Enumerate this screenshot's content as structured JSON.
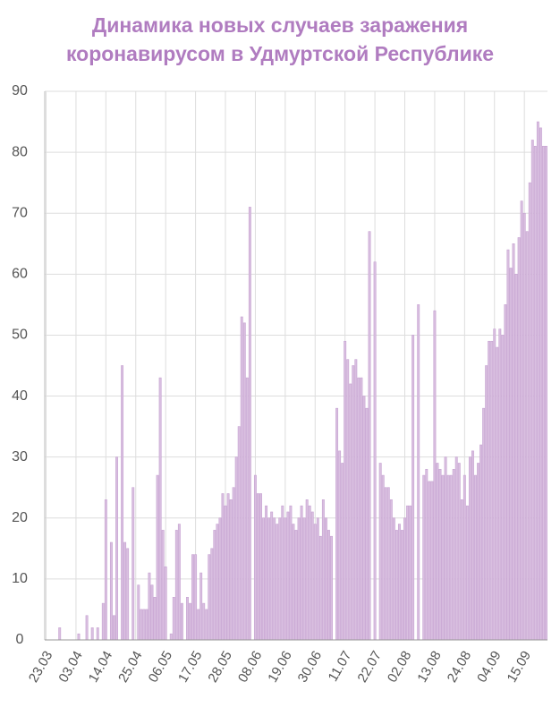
{
  "chart_data": {
    "type": "bar",
    "title": [
      "Динамика новых случаев заражения",
      "коронавирусом в Удмуртской Республике"
    ],
    "categories": [
      "23.03",
      null,
      null,
      null,
      null,
      null,
      null,
      null,
      null,
      null,
      null,
      "03.04",
      null,
      null,
      null,
      null,
      null,
      null,
      null,
      null,
      null,
      null,
      "14.04",
      null,
      null,
      null,
      null,
      null,
      null,
      null,
      null,
      null,
      null,
      "25.04",
      null,
      null,
      null,
      null,
      null,
      null,
      null,
      null,
      null,
      null,
      "06.05",
      null,
      null,
      null,
      null,
      null,
      null,
      null,
      null,
      null,
      null,
      "17.05",
      null,
      null,
      null,
      null,
      null,
      null,
      null,
      null,
      null,
      null,
      "28.05",
      null,
      null,
      null,
      null,
      null,
      null,
      null,
      null,
      null,
      null,
      "08.06",
      null,
      null,
      null,
      null,
      null,
      null,
      null,
      null,
      null,
      null,
      "19.06",
      null,
      null,
      null,
      null,
      null,
      null,
      null,
      null,
      null,
      null,
      "30.06",
      null,
      null,
      null,
      null,
      null,
      null,
      null,
      null,
      null,
      null,
      "11.07",
      null,
      null,
      null,
      null,
      null,
      null,
      null,
      null,
      null,
      null,
      "22.07",
      null,
      null,
      null,
      null,
      null,
      null,
      null,
      null,
      null,
      null,
      "02.08",
      null,
      null,
      null,
      null,
      null,
      null,
      null,
      null,
      null,
      null,
      "13.08",
      null,
      null,
      null,
      null,
      null,
      null,
      null,
      null,
      null,
      null,
      "24.08",
      null,
      null,
      null,
      null,
      null,
      null,
      null,
      null,
      null,
      null,
      "04.09",
      null,
      null,
      null,
      null,
      null,
      null,
      null,
      null,
      null,
      null,
      "15.09",
      null,
      null,
      null,
      null,
      null,
      null,
      null,
      null
    ],
    "values": [
      0,
      0,
      0,
      0,
      0,
      2,
      0,
      0,
      0,
      0,
      0,
      0,
      1,
      0,
      0,
      4,
      0,
      2,
      0,
      2,
      0,
      6,
      23,
      0,
      16,
      4,
      30,
      0,
      45,
      16,
      15,
      0,
      25,
      0,
      9,
      5,
      5,
      5,
      11,
      9,
      7,
      27,
      43,
      18,
      12,
      0,
      1,
      7,
      18,
      19,
      6,
      0,
      7,
      6,
      14,
      14,
      5,
      11,
      6,
      5,
      14,
      15,
      18,
      19,
      20,
      24,
      22,
      24,
      23,
      25,
      30,
      35,
      53,
      52,
      43,
      71,
      0,
      27,
      24,
      24,
      20,
      22,
      20,
      21,
      20,
      19,
      20,
      22,
      20,
      21,
      22,
      19,
      18,
      20,
      22,
      20,
      23,
      22,
      21,
      19,
      20,
      17,
      23,
      20,
      18,
      17,
      0,
      38,
      31,
      29,
      49,
      46,
      42,
      45,
      46,
      43,
      43,
      40,
      38,
      67,
      0,
      62,
      0,
      29,
      27,
      25,
      25,
      23,
      20,
      18,
      19,
      18,
      20,
      22,
      22,
      50,
      0,
      55,
      0,
      27,
      28,
      26,
      26,
      54,
      29,
      28,
      27,
      30,
      27,
      27,
      28,
      30,
      29,
      23,
      27,
      22,
      30,
      31,
      27,
      29,
      32,
      38,
      45,
      49,
      49,
      51,
      48,
      51,
      50,
      55,
      64,
      61,
      65,
      60,
      66,
      72,
      70,
      67,
      75,
      82,
      81,
      85,
      84,
      81,
      81
    ],
    "color": "#d9bfe0",
    "ylim": [
      0,
      90
    ],
    "yticks": [
      0,
      10,
      20,
      30,
      40,
      50,
      60,
      70,
      80,
      90
    ],
    "grid": true
  }
}
